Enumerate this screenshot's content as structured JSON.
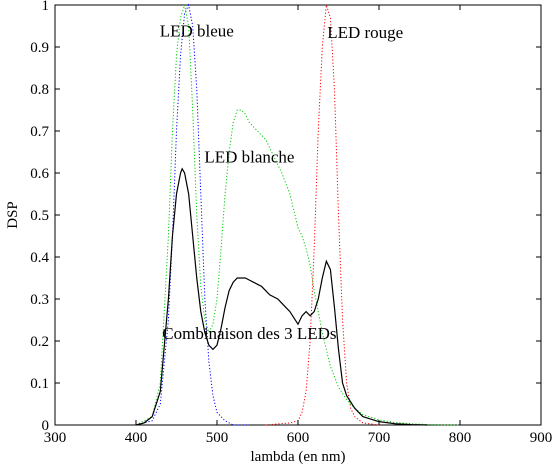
{
  "chart_data": {
    "type": "line",
    "title": "",
    "xlabel": "lambda (en nm)",
    "ylabel": "DSP",
    "xlim": [
      300,
      900
    ],
    "ylim": [
      0,
      1
    ],
    "xticks": [
      300,
      400,
      500,
      600,
      700,
      800,
      900
    ],
    "xtick_labels": [
      "300",
      "400",
      "500",
      "600",
      "700",
      "800",
      "900"
    ],
    "yticks": [
      0,
      0.1,
      0.2,
      0.3,
      0.4,
      0.5,
      0.6,
      0.7,
      0.8,
      0.9,
      1
    ],
    "ytick_labels": [
      "0",
      "0.1",
      "0.2",
      "0.3",
      "0.4",
      "0.5",
      "0.6",
      "0.7",
      "0.8",
      "0.9",
      "1"
    ],
    "grid": false,
    "legend": "none",
    "annotations": [
      {
        "text": "LED bleue",
        "x": 475,
        "y": 0.925
      },
      {
        "text": "LED rouge",
        "x": 683,
        "y": 0.922
      },
      {
        "text": "LED blanche",
        "x": 540,
        "y": 0.625
      },
      {
        "text": "Combinaison des 3 LEDs",
        "x": 540,
        "y": 0.205
      }
    ],
    "series": [
      {
        "color": "#0000ff",
        "style": "dotted",
        "x": [
          400,
          420,
          430,
          440,
          445,
          450,
          455,
          460,
          465,
          470,
          475,
          480,
          485,
          490,
          495,
          500,
          510,
          520,
          540
        ],
        "y": [
          0,
          0.01,
          0.05,
          0.25,
          0.45,
          0.7,
          0.88,
          0.98,
          1.0,
          0.95,
          0.8,
          0.55,
          0.3,
          0.15,
          0.07,
          0.03,
          0.01,
          0.0,
          0.0
        ]
      },
      {
        "color": "#ff0000",
        "style": "dotted",
        "x": [
          560,
          590,
          600,
          605,
          610,
          615,
          620,
          625,
          630,
          635,
          640,
          645,
          650,
          655,
          660,
          665,
          670,
          680,
          700
        ],
        "y": [
          0,
          0.005,
          0.01,
          0.03,
          0.08,
          0.2,
          0.42,
          0.7,
          0.9,
          1.0,
          0.97,
          0.8,
          0.5,
          0.25,
          0.1,
          0.04,
          0.02,
          0.005,
          0
        ]
      },
      {
        "color": "#00cc00",
        "style": "dotted",
        "x": [
          400,
          420,
          430,
          440,
          445,
          450,
          455,
          460,
          465,
          470,
          475,
          480,
          485,
          490,
          495,
          500,
          505,
          510,
          515,
          520,
          525,
          530,
          535,
          540,
          550,
          560,
          570,
          580,
          590,
          600,
          605,
          610,
          615,
          620,
          630,
          640,
          650,
          660,
          670,
          680,
          700,
          720,
          740,
          760,
          780,
          800
        ],
        "y": [
          0,
          0.02,
          0.1,
          0.45,
          0.7,
          0.88,
          0.97,
          1.0,
          0.95,
          0.75,
          0.5,
          0.33,
          0.25,
          0.22,
          0.24,
          0.3,
          0.42,
          0.55,
          0.65,
          0.72,
          0.75,
          0.75,
          0.74,
          0.72,
          0.7,
          0.68,
          0.64,
          0.6,
          0.55,
          0.47,
          0.45,
          0.42,
          0.38,
          0.32,
          0.22,
          0.14,
          0.09,
          0.06,
          0.04,
          0.025,
          0.012,
          0.006,
          0.003,
          0.001,
          0,
          0
        ]
      },
      {
        "color": "#000000",
        "style": "solid",
        "x": [
          400,
          410,
          420,
          430,
          440,
          445,
          450,
          455,
          457,
          460,
          465,
          470,
          475,
          480,
          485,
          490,
          495,
          500,
          505,
          510,
          515,
          520,
          525,
          530,
          535,
          540,
          545,
          550,
          555,
          560,
          565,
          570,
          575,
          580,
          585,
          590,
          595,
          600,
          605,
          610,
          615,
          620,
          625,
          630,
          635,
          640,
          645,
          650,
          655,
          660,
          670,
          680,
          700,
          720,
          740,
          760
        ],
        "y": [
          0,
          0.005,
          0.02,
          0.08,
          0.3,
          0.45,
          0.55,
          0.6,
          0.61,
          0.6,
          0.55,
          0.45,
          0.35,
          0.27,
          0.22,
          0.19,
          0.18,
          0.19,
          0.23,
          0.28,
          0.32,
          0.34,
          0.35,
          0.35,
          0.35,
          0.345,
          0.34,
          0.335,
          0.33,
          0.32,
          0.31,
          0.305,
          0.3,
          0.29,
          0.28,
          0.27,
          0.255,
          0.24,
          0.26,
          0.27,
          0.26,
          0.27,
          0.3,
          0.35,
          0.39,
          0.37,
          0.28,
          0.18,
          0.1,
          0.07,
          0.04,
          0.02,
          0.008,
          0.003,
          0.001,
          0
        ]
      }
    ]
  }
}
